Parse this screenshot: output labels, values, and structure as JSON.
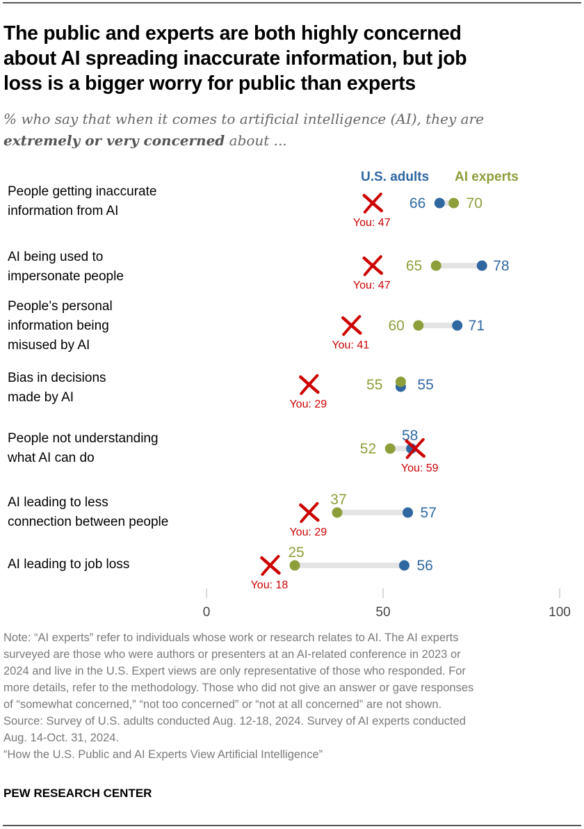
{
  "title": "The public and experts are both highly concerned about AI spreading inaccurate information, but job loss is a bigger worry for public than experts",
  "title_lines": [
    "The public and experts are both highly concerned",
    "about AI spreading inaccurate information, but job",
    "loss is a bigger worry for public than experts"
  ],
  "subtitle": {
    "line1": "% who say that when it comes to artificial intelligence (AI), they are",
    "bold": "extremely or very concerned",
    "rest": " about ..."
  },
  "colors": {
    "us_adults": "#2f67a1",
    "ai_experts": "#8c9f3a",
    "you_marker": "#cc0000",
    "connector": "#e4e4e4",
    "axis_tick": "#cccccc",
    "axis_label": "#444444"
  },
  "chart_data": {
    "type": "dot-plot",
    "title": "The public and experts are both highly concerned about AI spreading inaccurate information, but job loss is a bigger worry for public than experts",
    "xlabel": "",
    "ylabel": "",
    "xlim": [
      0,
      100
    ],
    "x_ticks": [
      0,
      50,
      100
    ],
    "x_tick_labels": [
      "0",
      "50",
      "100"
    ],
    "grid": false,
    "legend": {
      "placement": "top-right",
      "entries": [
        "U.S. adults",
        "AI experts"
      ]
    },
    "categories": [
      [
        "People getting inaccurate",
        "information from AI"
      ],
      [
        "AI being used to",
        "impersonate people"
      ],
      [
        "People’s personal",
        "information being",
        "misused by AI"
      ],
      [
        "Bias in decisions",
        "made by AI"
      ],
      [
        "People not understanding",
        "what AI can do"
      ],
      [
        "AI leading to less",
        "connection between people"
      ],
      [
        "AI leading to job loss"
      ]
    ],
    "series": [
      {
        "name": "U.S. adults",
        "values": [
          66,
          78,
          71,
          55,
          58,
          57,
          56
        ]
      },
      {
        "name": "AI experts",
        "values": [
          70,
          65,
          60,
          55,
          52,
          37,
          25
        ]
      },
      {
        "name": "You",
        "marker": "x",
        "values": [
          47,
          47,
          41,
          29,
          59,
          29,
          18
        ]
      }
    ],
    "you_label_prefix": "You: "
  },
  "footnote": {
    "lines": [
      "Note: “AI experts” refer to individuals whose work or research relates to AI. The AI experts",
      "surveyed are those who were authors or presenters at an AI-related conference in 2023 or",
      "2024 and live in the U.S. Expert views are only representative of those who responded. For",
      "more details, refer to the methodology. Those who did not give an answer or gave responses",
      "of “somewhat concerned,” “not too concerned” or “not at all concerned” are not shown.",
      "Source: Survey of U.S. adults conducted Aug. 12-18, 2024. Survey of AI experts conducted",
      "Aug. 14-Oct. 31, 2024.",
      "“How the U.S. Public and AI Experts View Artificial Intelligence”"
    ]
  },
  "brand": "PEW RESEARCH CENTER"
}
